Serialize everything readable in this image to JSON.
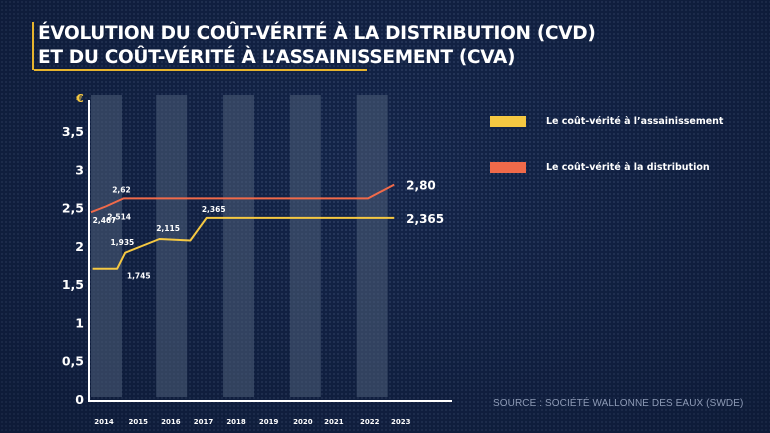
{
  "title": {
    "line1": "ÉVOLUTION DU COÛT-VÉRITÉ À LA DISTRIBUTION (CVD)",
    "line2": "ET DU COÛT-VÉRITÉ À L’ASSAINISSEMENT (CVA)"
  },
  "colors": {
    "background": "#14254a",
    "accent": "#e6b42e",
    "cva": "#f5c842",
    "cvd": "#f06a4a",
    "band": "#4a5a75"
  },
  "source": "SOURCE : SOCIÉTÉ WALLONNE DES EAUX (SWDE)",
  "chart_data": {
    "type": "line",
    "title": "ÉVOLUTION DU COÛT-VÉRITÉ À LA DISTRIBUTION (CVD) ET DU COÛT-VÉRITÉ À L’ASSAINISSEMENT (CVA)",
    "xlabel": "",
    "ylabel": "€",
    "ylim": [
      0,
      3.5
    ],
    "yticks": [
      0,
      0.5,
      1,
      1.5,
      2,
      2.5,
      3,
      3.5
    ],
    "ytick_labels": [
      "0",
      "0,5",
      "1",
      "1,5",
      "2",
      "2,5",
      "3",
      "3,5"
    ],
    "categories": [
      "2014",
      "2015",
      "2016",
      "2017",
      "2018",
      "2019",
      "2020",
      "2021",
      "2022",
      "2023"
    ],
    "category_positions": [
      0.4,
      1.45,
      2.45,
      3.45,
      4.45,
      5.45,
      6.5,
      7.45,
      8.55,
      9.5
    ],
    "shaded_bands": [
      [
        0,
        0.95
      ],
      [
        2.0,
        2.95
      ],
      [
        4.05,
        5.0
      ],
      [
        6.1,
        7.05
      ],
      [
        8.15,
        9.1
      ]
    ],
    "legend": [
      "Le coût-vérité à l’assainissement",
      "Le coût-vérité à la distribution"
    ],
    "legend_position": "top-right",
    "grid": false,
    "series": [
      {
        "name": "Le coût-vérité à la distribution",
        "color": "#f06a4a",
        "points": [
          [
            0.0,
            2.44
          ],
          [
            0.45,
            2.514
          ],
          [
            1.0,
            2.62
          ],
          [
            8.5,
            2.62
          ],
          [
            9.3,
            2.8
          ]
        ],
        "labels": [
          {
            "text": "2,467",
            "x": 0.05,
            "y": 2.467,
            "pos": "below"
          },
          {
            "text": "2,514",
            "x": 0.5,
            "y": 2.514,
            "pos": "below"
          },
          {
            "text": "2,62",
            "x": 0.65,
            "y": 2.62,
            "pos": "above"
          },
          {
            "text": "2,80",
            "x": 9.3,
            "y": 2.8,
            "pos": "end"
          }
        ]
      },
      {
        "name": "Le coût-vérité à l’assainissement",
        "color": "#f5c842",
        "points": [
          [
            0.05,
            1.7
          ],
          [
            0.8,
            1.7
          ],
          [
            1.05,
            1.91
          ],
          [
            2.1,
            2.09
          ],
          [
            3.05,
            2.07
          ],
          [
            3.55,
            2.365
          ],
          [
            9.3,
            2.365
          ]
        ],
        "labels": [
          {
            "text": "1,745",
            "x": 1.1,
            "y": 1.745,
            "pos": "below"
          },
          {
            "text": "1,935",
            "x": 0.6,
            "y": 1.935,
            "pos": "above"
          },
          {
            "text": "2,115",
            "x": 2.0,
            "y": 2.115,
            "pos": "above"
          },
          {
            "text": "2,365",
            "x": 3.4,
            "y": 2.365,
            "pos": "above"
          },
          {
            "text": "2,365",
            "x": 9.3,
            "y": 2.365,
            "pos": "end"
          }
        ]
      }
    ]
  }
}
